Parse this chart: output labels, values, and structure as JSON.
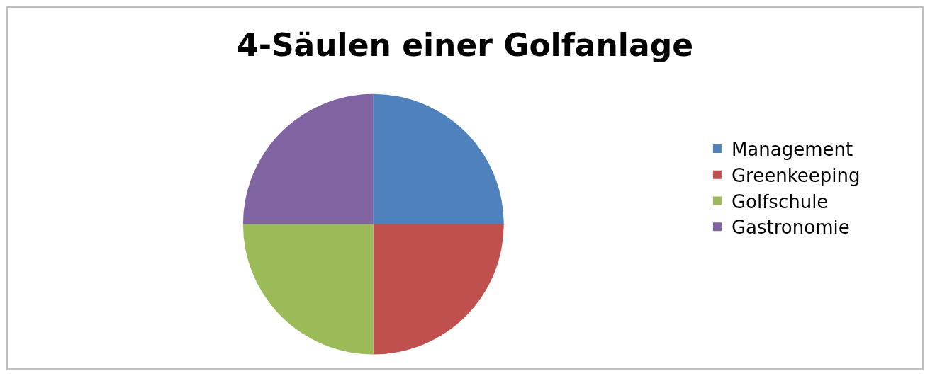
{
  "chart_data": {
    "type": "pie",
    "title": "4-Säulen einer Golfanlage",
    "categories": [
      "Management",
      "Greenkeeping",
      "Golfschule",
      "Gastronomie"
    ],
    "values": [
      25,
      25,
      25,
      25
    ],
    "colors": [
      "#4f81bd",
      "#c0504d",
      "#9bbb59",
      "#8064a2"
    ],
    "legend": "right"
  }
}
